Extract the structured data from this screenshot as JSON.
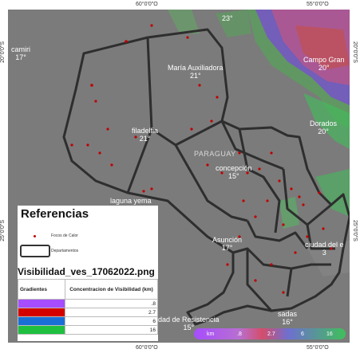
{
  "axes": {
    "top": [
      "60°0'0\"O",
      "55°0'0\"O"
    ],
    "bottom": [
      "60°0'0\"O",
      "55°0'0\"O"
    ],
    "left": [
      "20°0'0\"S",
      "25°0'0\"S"
    ],
    "right": [
      "20°0'0\"S",
      "25°0'0\"S"
    ]
  },
  "country_label": "PARAGUAY",
  "cities": [
    {
      "name": "camiri",
      "temp": "17°"
    },
    {
      "name": "María Auxiliadora",
      "temp": "21°"
    },
    {
      "name": "filadelfia",
      "temp": "21°"
    },
    {
      "name": "concepción",
      "temp": "15°"
    },
    {
      "name": "laguna yema",
      "temp": ""
    },
    {
      "name": "Asunción",
      "temp": "17°"
    },
    {
      "name": "ciudad del e",
      "temp": "3"
    },
    {
      "name": "Campo Gran",
      "temp": "20°"
    },
    {
      "name": "Dorados",
      "temp": "20°"
    },
    {
      "name": "23°",
      "temp": ""
    },
    {
      "name": "dad de Resistencia",
      "temp": "15°"
    },
    {
      "name": "sadas",
      "temp": "16°"
    }
  ],
  "legend": {
    "title": "Referencias",
    "items": [
      {
        "label": "Focos de Calor"
      },
      {
        "label": "Departamentos"
      }
    ],
    "subtitle": "Visibilidad_ves_17062022.png",
    "table_headers": [
      "Gradientes",
      "Concentracion de Visibilidad (km)"
    ],
    "rows": [
      {
        "color": "#a64dff",
        "value": ".8"
      },
      {
        "color": "#d40000",
        "value": "2.7"
      },
      {
        "color": "#1a6fd6",
        "value": "6"
      },
      {
        "color": "#1fbf40",
        "value": "16"
      }
    ]
  },
  "scale_bar": {
    "unit": "km",
    "stops": [
      ".8",
      "2.7",
      "6",
      "16"
    ]
  }
}
